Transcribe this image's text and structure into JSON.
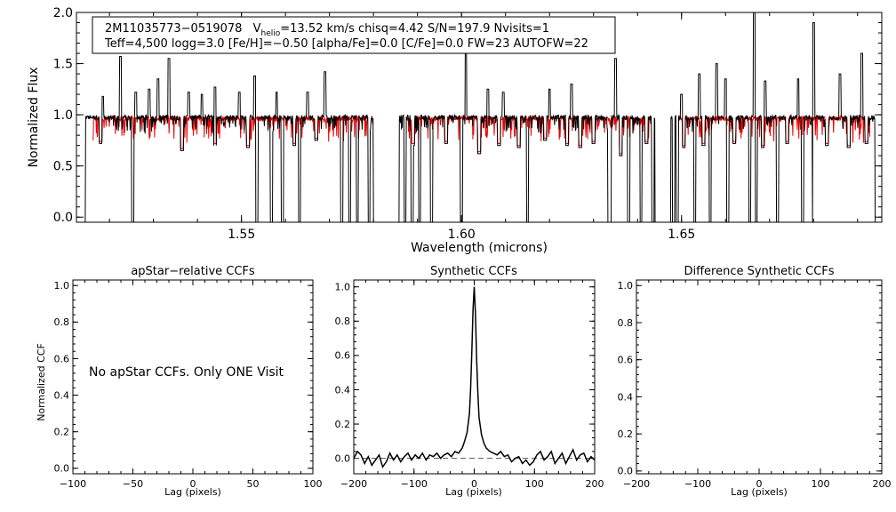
{
  "chart_data": [
    {
      "type": "line",
      "xlabel": "Wavelength (microns)",
      "ylabel": "Normalized Flux",
      "xlim": [
        1.5125,
        1.6955
      ],
      "ylim": [
        -0.05,
        2.0
      ],
      "xticks": [
        1.55,
        1.6,
        1.65
      ],
      "xtick_labels": [
        "1.55",
        "1.60",
        "1.65"
      ],
      "yticks": [
        0.0,
        0.5,
        1.0,
        1.5,
        2.0
      ],
      "ytick_labels": [
        "0.0",
        "0.5",
        "1.0",
        "1.5",
        "2.0"
      ],
      "colors": {
        "observed": "#000000",
        "model": "#ee0000"
      },
      "info_line1_name": "2M11035773−0519078",
      "info_line1_v": "V",
      "info_line1_vsub": "helio",
      "info_line1_rest": "=13.52 km/s  chisq=4.42  S/N=197.9  Nvisits=1",
      "info_line2": "Teff=4,500 logg=3.0 [Fe/H]=−0.50 [alpha/Fe]=0.0 [C/Fe]=0.0 FW=23 AUTOFW=22",
      "chips": [
        [
          1.5145,
          1.58
        ],
        [
          1.5858,
          1.644
        ],
        [
          1.6475,
          1.694
        ]
      ],
      "spikes": [
        [
          1.5185,
          1.18
        ],
        [
          1.5225,
          1.57
        ],
        [
          1.526,
          1.22
        ],
        [
          1.529,
          1.25
        ],
        [
          1.531,
          1.35
        ],
        [
          1.5335,
          1.55
        ],
        [
          1.538,
          1.22
        ],
        [
          1.541,
          1.2
        ],
        [
          1.544,
          1.27
        ],
        [
          1.5495,
          1.22
        ],
        [
          1.553,
          1.38
        ],
        [
          1.558,
          1.22
        ],
        [
          1.565,
          1.22
        ],
        [
          1.569,
          1.42
        ],
        [
          1.601,
          1.6
        ],
        [
          1.606,
          1.25
        ],
        [
          1.6095,
          1.22
        ],
        [
          1.62,
          1.25
        ],
        [
          1.625,
          1.3
        ],
        [
          1.635,
          1.55
        ],
        [
          1.65,
          1.2
        ],
        [
          1.654,
          1.4
        ],
        [
          1.658,
          1.5
        ],
        [
          1.66,
          1.35
        ],
        [
          1.6665,
          2.0
        ],
        [
          1.669,
          1.33
        ],
        [
          1.6765,
          1.35
        ],
        [
          1.68,
          1.9
        ],
        [
          1.686,
          1.4
        ],
        [
          1.691,
          1.6
        ]
      ],
      "deep_dips": [
        1.5253,
        1.5535,
        1.5568,
        1.5593,
        1.5632,
        1.5728,
        1.5746,
        1.5763,
        1.579,
        1.5872,
        1.5888,
        1.5905,
        1.5932,
        1.6,
        1.615,
        1.6335,
        1.6338,
        1.638,
        1.6408,
        1.6435,
        1.6482,
        1.649,
        1.653,
        1.6565,
        1.6605,
        1.6655,
        1.667,
        1.6718,
        1.6775,
        1.68
      ],
      "mid_dips": [
        [
          1.518,
          0.72
        ],
        [
          1.5365,
          0.65
        ],
        [
          1.544,
          0.7
        ],
        [
          1.5515,
          0.68
        ],
        [
          1.562,
          0.7
        ],
        [
          1.567,
          0.75
        ],
        [
          1.589,
          0.7
        ],
        [
          1.5965,
          0.72
        ],
        [
          1.604,
          0.62
        ],
        [
          1.6085,
          0.7
        ],
        [
          1.613,
          0.68
        ],
        [
          1.619,
          0.75
        ],
        [
          1.624,
          0.7
        ],
        [
          1.627,
          0.68
        ],
        [
          1.63,
          0.72
        ],
        [
          1.6362,
          0.6
        ],
        [
          1.642,
          0.72
        ],
        [
          1.6505,
          0.68
        ],
        [
          1.655,
          0.7
        ],
        [
          1.662,
          0.72
        ],
        [
          1.6685,
          0.68
        ],
        [
          1.674,
          0.72
        ],
        [
          1.683,
          0.7
        ],
        [
          1.688,
          0.68
        ],
        [
          1.692,
          0.72
        ]
      ]
    },
    {
      "type": "line",
      "title": "apStar−relative CCFs",
      "xlabel": "Lag (pixels)",
      "ylabel": "Normalized CCF",
      "xlim": [
        -100,
        100
      ],
      "ylim": [
        -0.03,
        1.03
      ],
      "xticks": [
        -100,
        -50,
        0,
        50,
        100
      ],
      "xtick_labels": [
        "−100",
        "−50",
        "0",
        "50",
        "100"
      ],
      "yticks": [
        0.0,
        0.2,
        0.4,
        0.6,
        0.8,
        1.0
      ],
      "ytick_labels": [
        "0.0",
        "0.2",
        "0.4",
        "0.6",
        "0.8",
        "1.0"
      ],
      "annotation": "No apStar CCFs.  Only ONE Visit",
      "series": []
    },
    {
      "type": "line",
      "title": "Synthetic CCFs",
      "xlabel": "Lag (pixels)",
      "xlim": [
        -200,
        200
      ],
      "ylim": [
        -0.09,
        1.04
      ],
      "xticks": [
        -200,
        -100,
        0,
        100,
        200
      ],
      "xtick_labels": [
        "−200",
        "−100",
        "0",
        "100",
        "200"
      ],
      "yticks": [
        0.0,
        0.2,
        0.4,
        0.6,
        0.8,
        1.0
      ],
      "ytick_labels": [
        "0.0",
        "0.2",
        "0.4",
        "0.6",
        "0.8",
        "1.0"
      ],
      "baseline": 0.0,
      "series": [
        {
          "x": [
            -200,
            -194,
            -188,
            -182,
            -176,
            -170,
            -164,
            -158,
            -152,
            -146,
            -140,
            -134,
            -128,
            -122,
            -116,
            -110,
            -104,
            -98,
            -92,
            -86,
            -80,
            -74,
            -68,
            -62,
            -56,
            -50,
            -44,
            -38,
            -32,
            -26,
            -20,
            -16,
            -12,
            -8,
            -6,
            -4,
            -2,
            0,
            2,
            4,
            6,
            8,
            12,
            16,
            20,
            26,
            32,
            38,
            44,
            50,
            56,
            62,
            68,
            74,
            80,
            86,
            92,
            98,
            104,
            110,
            116,
            122,
            128,
            134,
            140,
            146,
            152,
            158,
            164,
            170,
            176,
            182,
            188,
            194,
            200
          ],
          "y": [
            0.0,
            0.04,
            0.02,
            -0.03,
            0.01,
            -0.04,
            -0.01,
            0.02,
            -0.05,
            -0.02,
            0.03,
            -0.01,
            0.02,
            -0.02,
            0.01,
            0.03,
            -0.01,
            0.02,
            0.0,
            0.03,
            -0.01,
            0.02,
            0.01,
            0.03,
            0.0,
            0.02,
            0.03,
            0.01,
            0.04,
            0.03,
            0.06,
            0.1,
            0.15,
            0.26,
            0.4,
            0.62,
            0.86,
            1.0,
            0.84,
            0.58,
            0.38,
            0.24,
            0.14,
            0.09,
            0.06,
            0.04,
            0.03,
            0.02,
            0.04,
            0.01,
            0.02,
            -0.02,
            0.0,
            0.01,
            -0.03,
            -0.01,
            -0.04,
            -0.02,
            0.02,
            0.04,
            -0.01,
            0.01,
            0.04,
            -0.03,
            0.0,
            0.03,
            -0.03,
            0.01,
            0.05,
            -0.01,
            0.02,
            0.03,
            -0.02,
            0.01,
            -0.01
          ]
        }
      ]
    },
    {
      "type": "line",
      "title": "Difference Synthetic CCFs",
      "xlabel": "Lag (pixels)",
      "xlim": [
        -200,
        200
      ],
      "ylim": [
        -0.015,
        1.03
      ],
      "xticks": [
        -200,
        -100,
        0,
        100,
        200
      ],
      "xtick_labels": [
        "−200",
        "−100",
        "0",
        "100",
        "200"
      ],
      "yticks": [
        0.0,
        0.2,
        0.4,
        0.6,
        0.8,
        1.0
      ],
      "ytick_labels": [
        "0.0",
        "0.2",
        "0.4",
        "0.6",
        "0.8",
        "1.0"
      ],
      "series": []
    }
  ]
}
